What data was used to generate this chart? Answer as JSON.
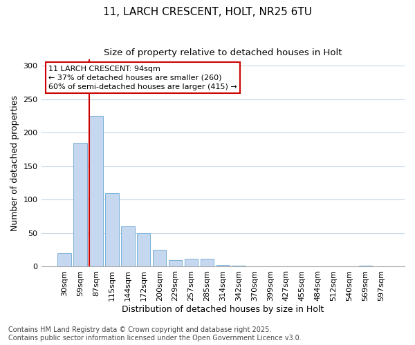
{
  "title_line1": "11, LARCH CRESCENT, HOLT, NR25 6TU",
  "title_line2": "Size of property relative to detached houses in Holt",
  "xlabel": "Distribution of detached houses by size in Holt",
  "ylabel": "Number of detached properties",
  "categories": [
    "30sqm",
    "59sqm",
    "87sqm",
    "115sqm",
    "144sqm",
    "172sqm",
    "200sqm",
    "229sqm",
    "257sqm",
    "285sqm",
    "314sqm",
    "342sqm",
    "370sqm",
    "399sqm",
    "427sqm",
    "455sqm",
    "484sqm",
    "512sqm",
    "540sqm",
    "569sqm",
    "597sqm"
  ],
  "values": [
    20,
    185,
    225,
    110,
    60,
    50,
    25,
    10,
    12,
    12,
    3,
    1,
    0,
    0,
    0,
    0,
    0,
    0,
    0,
    2,
    0
  ],
  "bar_color": "#c5d8f0",
  "bar_edgecolor": "#7ab0d8",
  "highlight_index": 2,
  "highlight_color": "#cc0000",
  "annotation_title": "11 LARCH CRESCENT: 94sqm",
  "annotation_line1": "← 37% of detached houses are smaller (260)",
  "annotation_line2": "60% of semi-detached houses are larger (415) →",
  "annotation_box_edgecolor": "#cc0000",
  "ylim": [
    0,
    310
  ],
  "yticks": [
    0,
    50,
    100,
    150,
    200,
    250,
    300
  ],
  "background_color": "#ffffff",
  "plot_bg_color": "#ffffff",
  "grid_color": "#c8d8e8",
  "footer_line1": "Contains HM Land Registry data © Crown copyright and database right 2025.",
  "footer_line2": "Contains public sector information licensed under the Open Government Licence v3.0.",
  "title_fontsize": 11,
  "subtitle_fontsize": 9.5,
  "axis_fontsize": 9,
  "tick_fontsize": 8,
  "annotation_fontsize": 8,
  "footer_fontsize": 7
}
